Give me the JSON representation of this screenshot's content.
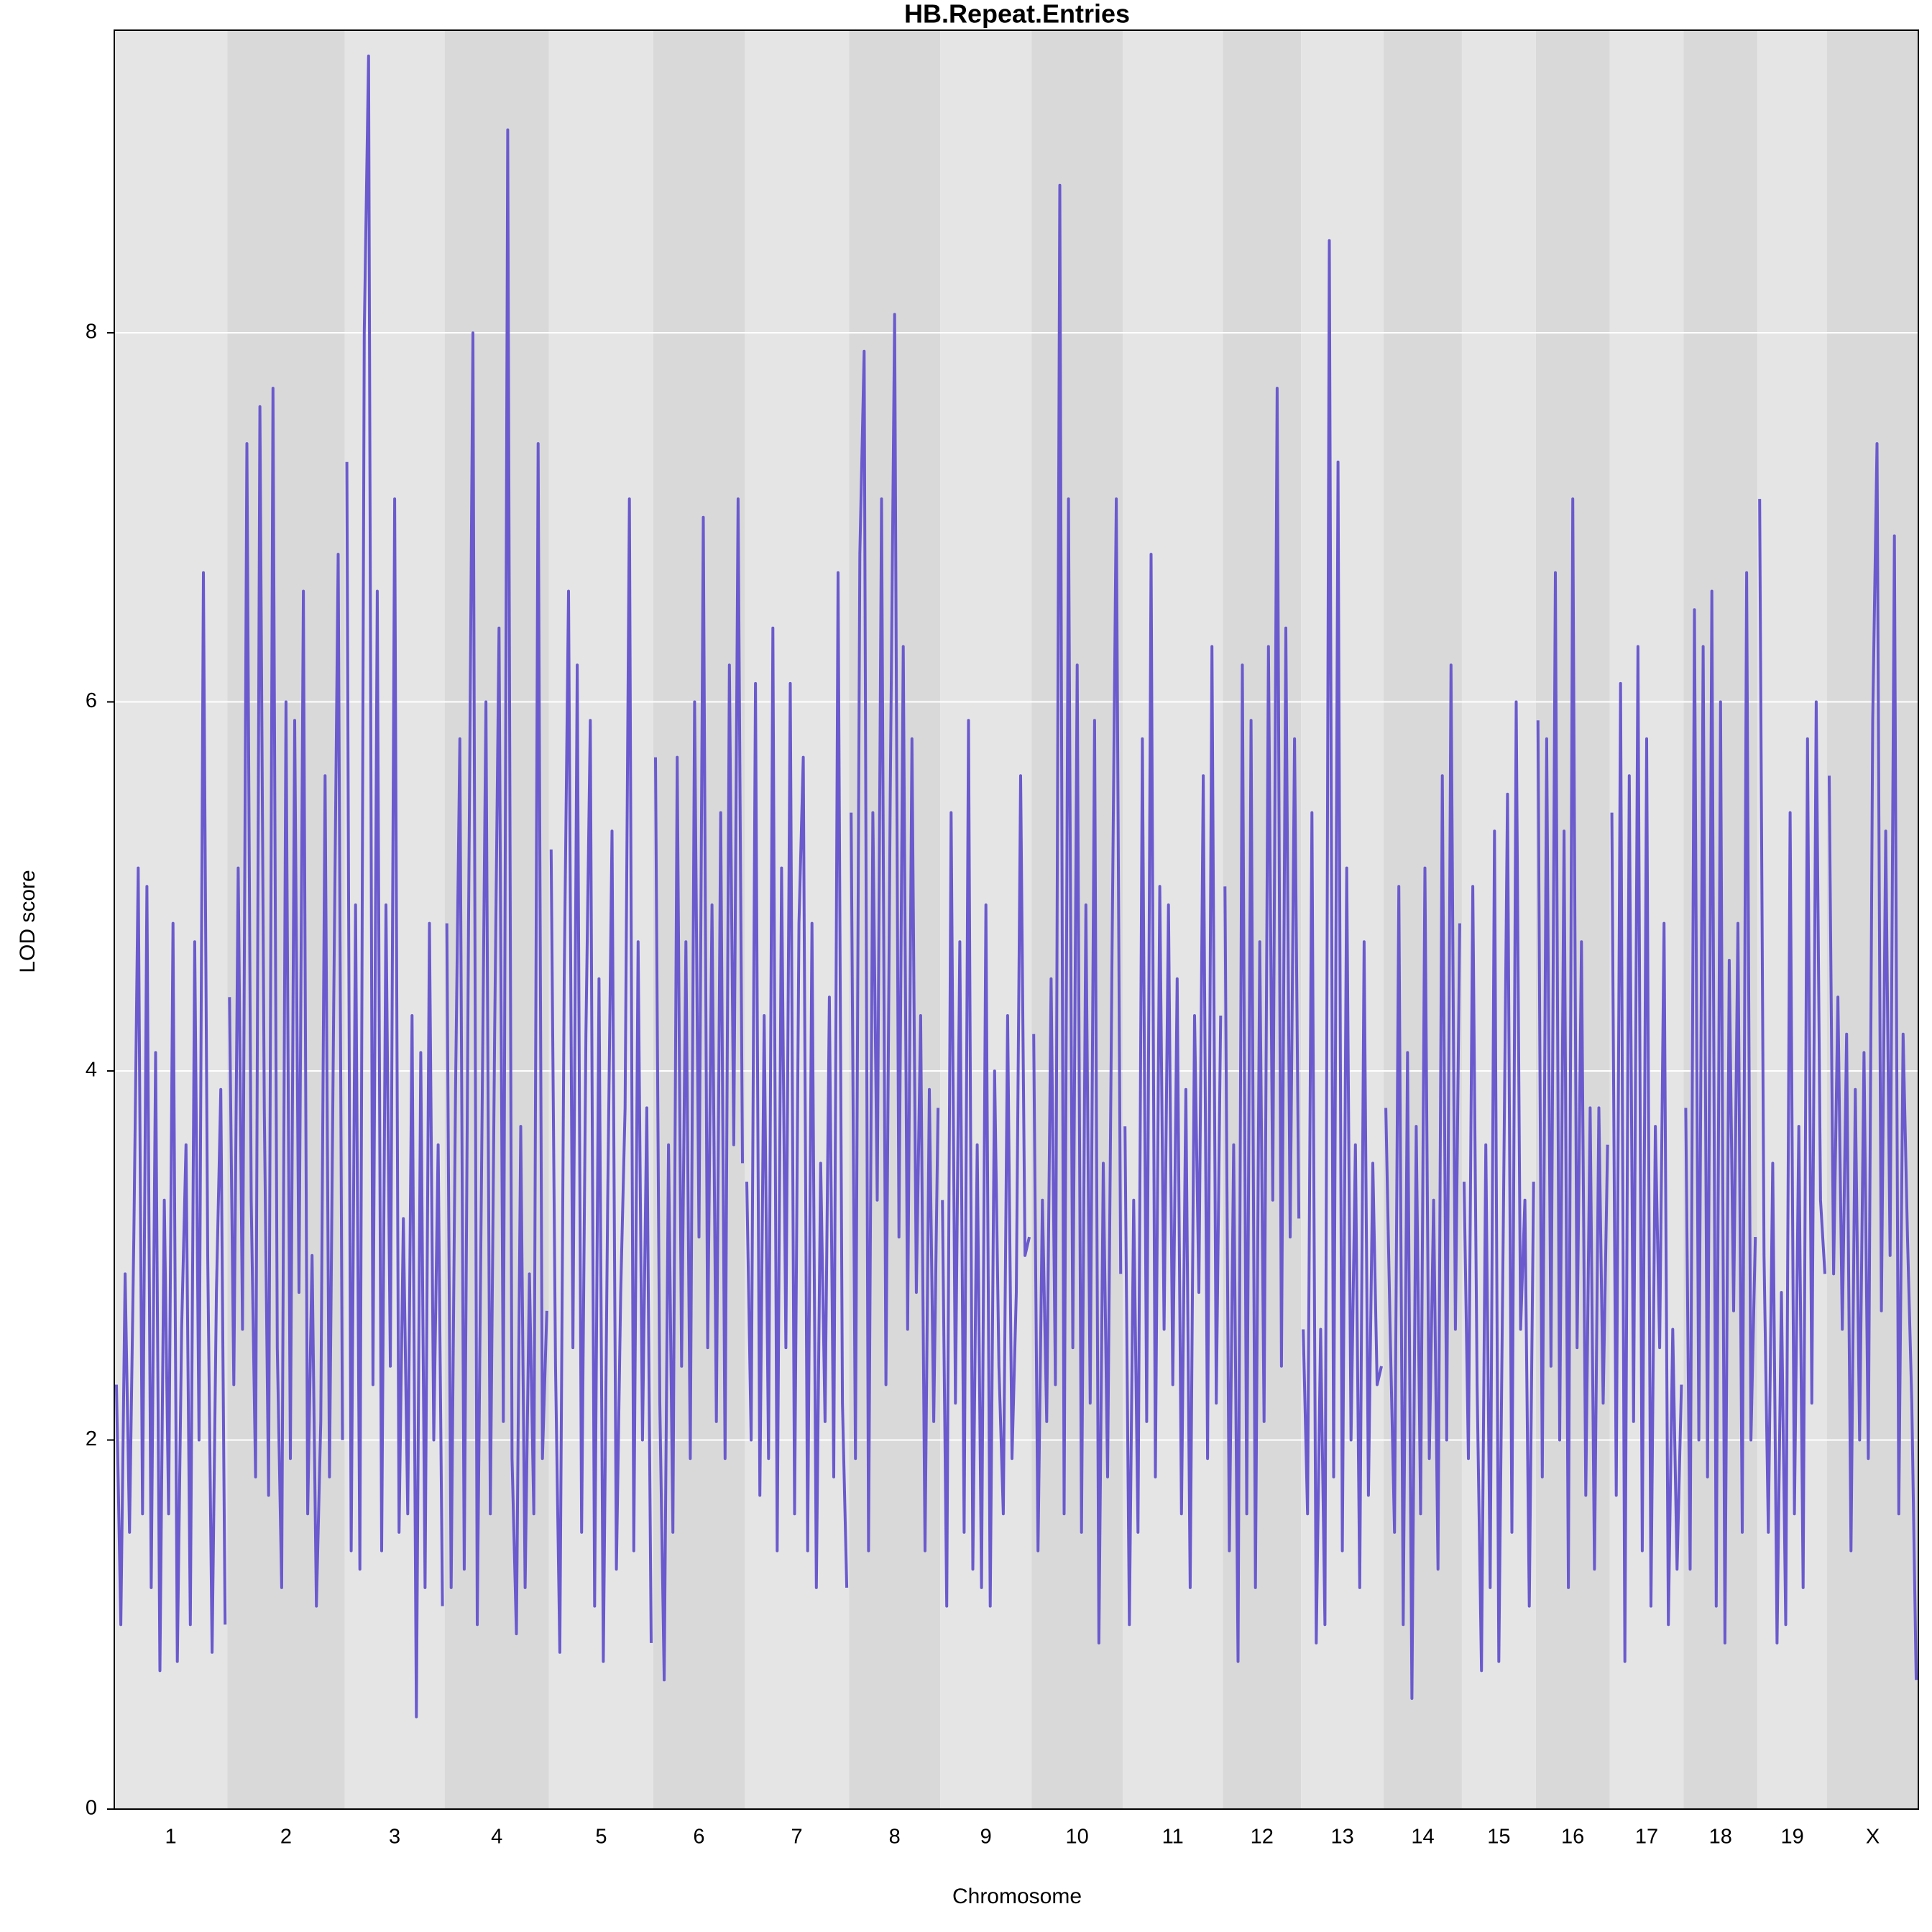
{
  "chart_data": {
    "type": "lod",
    "title": "HB.Repeat.Entries",
    "x_label": "Chromosome",
    "y_label": "LOD score",
    "ylim": [
      0,
      9.64
    ],
    "yticks": [
      0,
      2,
      4,
      6,
      8
    ],
    "grid": true,
    "color": "#6a5acd",
    "band_colors": [
      "#e5e5e5",
      "#d9d9d9"
    ],
    "chromosomes": [
      {
        "name": "1",
        "values": [
          2.3,
          1.0,
          2.9,
          1.5,
          3.1,
          5.1,
          1.6,
          5.0,
          1.2,
          4.1,
          0.75,
          3.3,
          1.6,
          4.8,
          0.8,
          2.6,
          3.6,
          1.0,
          4.7,
          2.0,
          6.7,
          3.0,
          0.85,
          2.8,
          3.9,
          1.0
        ]
      },
      {
        "name": "2",
        "values": [
          4.4,
          2.3,
          5.1,
          2.6,
          7.4,
          3.3,
          1.8,
          7.6,
          3.8,
          1.7,
          7.7,
          2.5,
          1.2,
          6.0,
          1.9,
          5.9,
          2.8,
          6.6,
          1.6,
          3.0,
          1.1,
          2.1,
          5.6,
          1.8,
          4.4,
          6.8,
          2.0
        ]
      },
      {
        "name": "3",
        "values": [
          7.3,
          1.4,
          4.9,
          1.3,
          8.0,
          9.5,
          2.3,
          6.6,
          1.4,
          4.9,
          2.4,
          7.1,
          1.5,
          3.2,
          1.6,
          4.3,
          0.5,
          4.1,
          1.2,
          4.8,
          2.0,
          3.6,
          1.1
        ]
      },
      {
        "name": "4",
        "values": [
          4.8,
          1.2,
          3.9,
          5.8,
          1.3,
          4.8,
          8.0,
          1.0,
          3.5,
          6.0,
          1.6,
          4.2,
          6.4,
          2.1,
          9.1,
          1.9,
          0.95,
          3.7,
          1.2,
          2.9,
          1.6,
          7.4,
          1.9,
          2.7
        ]
      },
      {
        "name": "5",
        "values": [
          5.2,
          2.4,
          0.85,
          4.5,
          6.6,
          2.5,
          6.2,
          1.5,
          4.2,
          5.9,
          1.1,
          4.5,
          0.8,
          3.3,
          5.3,
          1.3,
          2.8,
          3.8,
          7.1,
          1.4,
          4.7,
          2.0,
          3.8,
          0.9
        ]
      },
      {
        "name": "6",
        "values": [
          5.7,
          2.2,
          0.7,
          3.6,
          1.5,
          5.7,
          2.4,
          4.7,
          1.9,
          6.0,
          3.1,
          7.0,
          2.5,
          4.9,
          2.1,
          5.4,
          1.9,
          6.2,
          3.6,
          7.1,
          3.5
        ]
      },
      {
        "name": "7",
        "values": [
          3.4,
          2.0,
          6.1,
          1.7,
          4.3,
          1.9,
          6.4,
          1.4,
          5.1,
          2.5,
          6.1,
          1.6,
          4.8,
          5.7,
          1.4,
          4.8,
          1.2,
          3.5,
          2.1,
          4.4,
          1.8,
          6.7,
          2.2,
          1.2
        ]
      },
      {
        "name": "8",
        "values": [
          5.4,
          1.9,
          6.8,
          7.9,
          1.4,
          5.4,
          3.3,
          7.1,
          2.3,
          5.5,
          8.1,
          3.1,
          6.3,
          2.6,
          5.8,
          2.8,
          4.3,
          1.4,
          3.9,
          2.1,
          3.8
        ]
      },
      {
        "name": "9",
        "values": [
          3.3,
          1.1,
          5.4,
          2.2,
          4.7,
          1.5,
          5.9,
          1.3,
          3.6,
          1.2,
          4.9,
          1.1,
          4.0,
          2.4,
          1.6,
          4.3,
          1.9,
          2.8,
          5.6,
          3.0,
          3.1
        ]
      },
      {
        "name": "10",
        "values": [
          4.2,
          1.4,
          3.3,
          2.1,
          4.5,
          2.3,
          8.8,
          1.6,
          7.1,
          2.5,
          6.2,
          1.5,
          4.9,
          2.2,
          5.9,
          0.9,
          3.5,
          1.8,
          4.6,
          7.1,
          2.9
        ]
      },
      {
        "name": "11",
        "values": [
          3.7,
          1.0,
          3.3,
          1.5,
          5.8,
          2.1,
          6.8,
          1.8,
          5.0,
          2.6,
          4.9,
          2.3,
          4.5,
          1.6,
          3.9,
          1.2,
          4.3,
          2.8,
          5.6,
          1.9,
          6.3,
          2.2,
          4.3
        ]
      },
      {
        "name": "12",
        "values": [
          5.0,
          1.4,
          3.6,
          0.8,
          6.2,
          1.6,
          5.9,
          1.2,
          4.7,
          2.1,
          6.3,
          3.3,
          7.7,
          2.4,
          6.4,
          3.1,
          5.8,
          3.2
        ]
      },
      {
        "name": "13",
        "values": [
          2.6,
          1.6,
          5.4,
          0.9,
          2.6,
          1.0,
          8.5,
          1.8,
          7.3,
          1.4,
          5.1,
          2.0,
          3.6,
          1.2,
          4.7,
          1.7,
          3.5,
          2.3,
          2.4
        ]
      },
      {
        "name": "14",
        "values": [
          3.8,
          2.6,
          1.5,
          5.0,
          1.0,
          4.1,
          0.6,
          3.7,
          1.6,
          5.1,
          1.9,
          3.3,
          1.3,
          5.6,
          2.0,
          6.2,
          2.6,
          4.8
        ]
      },
      {
        "name": "15",
        "values": [
          3.4,
          1.9,
          5.0,
          2.3,
          0.75,
          3.6,
          1.2,
          5.3,
          0.8,
          3.1,
          5.5,
          1.5,
          6.0,
          2.6,
          3.3,
          1.1,
          3.4
        ]
      },
      {
        "name": "16",
        "values": [
          5.9,
          1.8,
          5.8,
          2.4,
          6.7,
          2.0,
          5.3,
          1.2,
          7.1,
          2.5,
          4.7,
          1.7,
          3.8,
          1.3,
          3.8,
          2.2,
          3.6
        ]
      },
      {
        "name": "17",
        "values": [
          5.4,
          1.7,
          6.1,
          0.8,
          5.6,
          2.1,
          6.3,
          1.4,
          5.8,
          1.1,
          3.7,
          2.5,
          4.8,
          1.0,
          2.6,
          1.3,
          2.3
        ]
      },
      {
        "name": "18",
        "values": [
          3.8,
          1.3,
          6.5,
          2.0,
          6.3,
          1.8,
          6.6,
          1.1,
          6.0,
          0.9,
          4.6,
          2.7,
          4.8,
          1.5,
          6.7,
          2.0,
          3.1
        ]
      },
      {
        "name": "19",
        "values": [
          7.1,
          3.0,
          1.5,
          3.5,
          0.9,
          2.8,
          1.0,
          5.4,
          1.6,
          3.7,
          1.2,
          5.8,
          2.2,
          6.0,
          3.3,
          2.9
        ]
      },
      {
        "name": "X",
        "values": [
          5.6,
          2.9,
          4.4,
          2.6,
          4.2,
          1.4,
          3.9,
          2.0,
          4.1,
          1.9,
          5.9,
          7.4,
          2.7,
          5.3,
          3.0,
          6.9,
          1.6,
          4.2,
          3.1,
          2.2,
          0.7
        ]
      }
    ]
  }
}
